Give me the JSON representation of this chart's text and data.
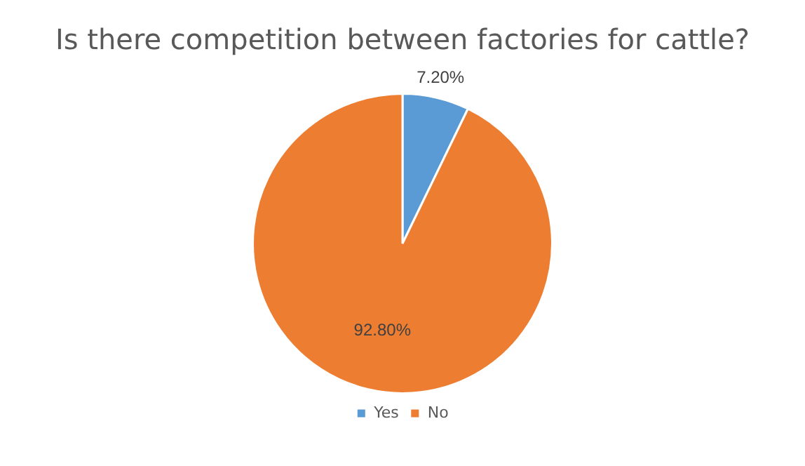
{
  "chart_data": {
    "type": "pie",
    "title": "Is there competition between factories for cattle?",
    "categories": [
      "Yes",
      "No"
    ],
    "values": [
      7.2,
      92.8
    ],
    "colors": [
      "#5b9bd5",
      "#ed7d31"
    ],
    "value_labels": [
      "7.20%",
      "92.80%"
    ],
    "legend": "bottom"
  }
}
